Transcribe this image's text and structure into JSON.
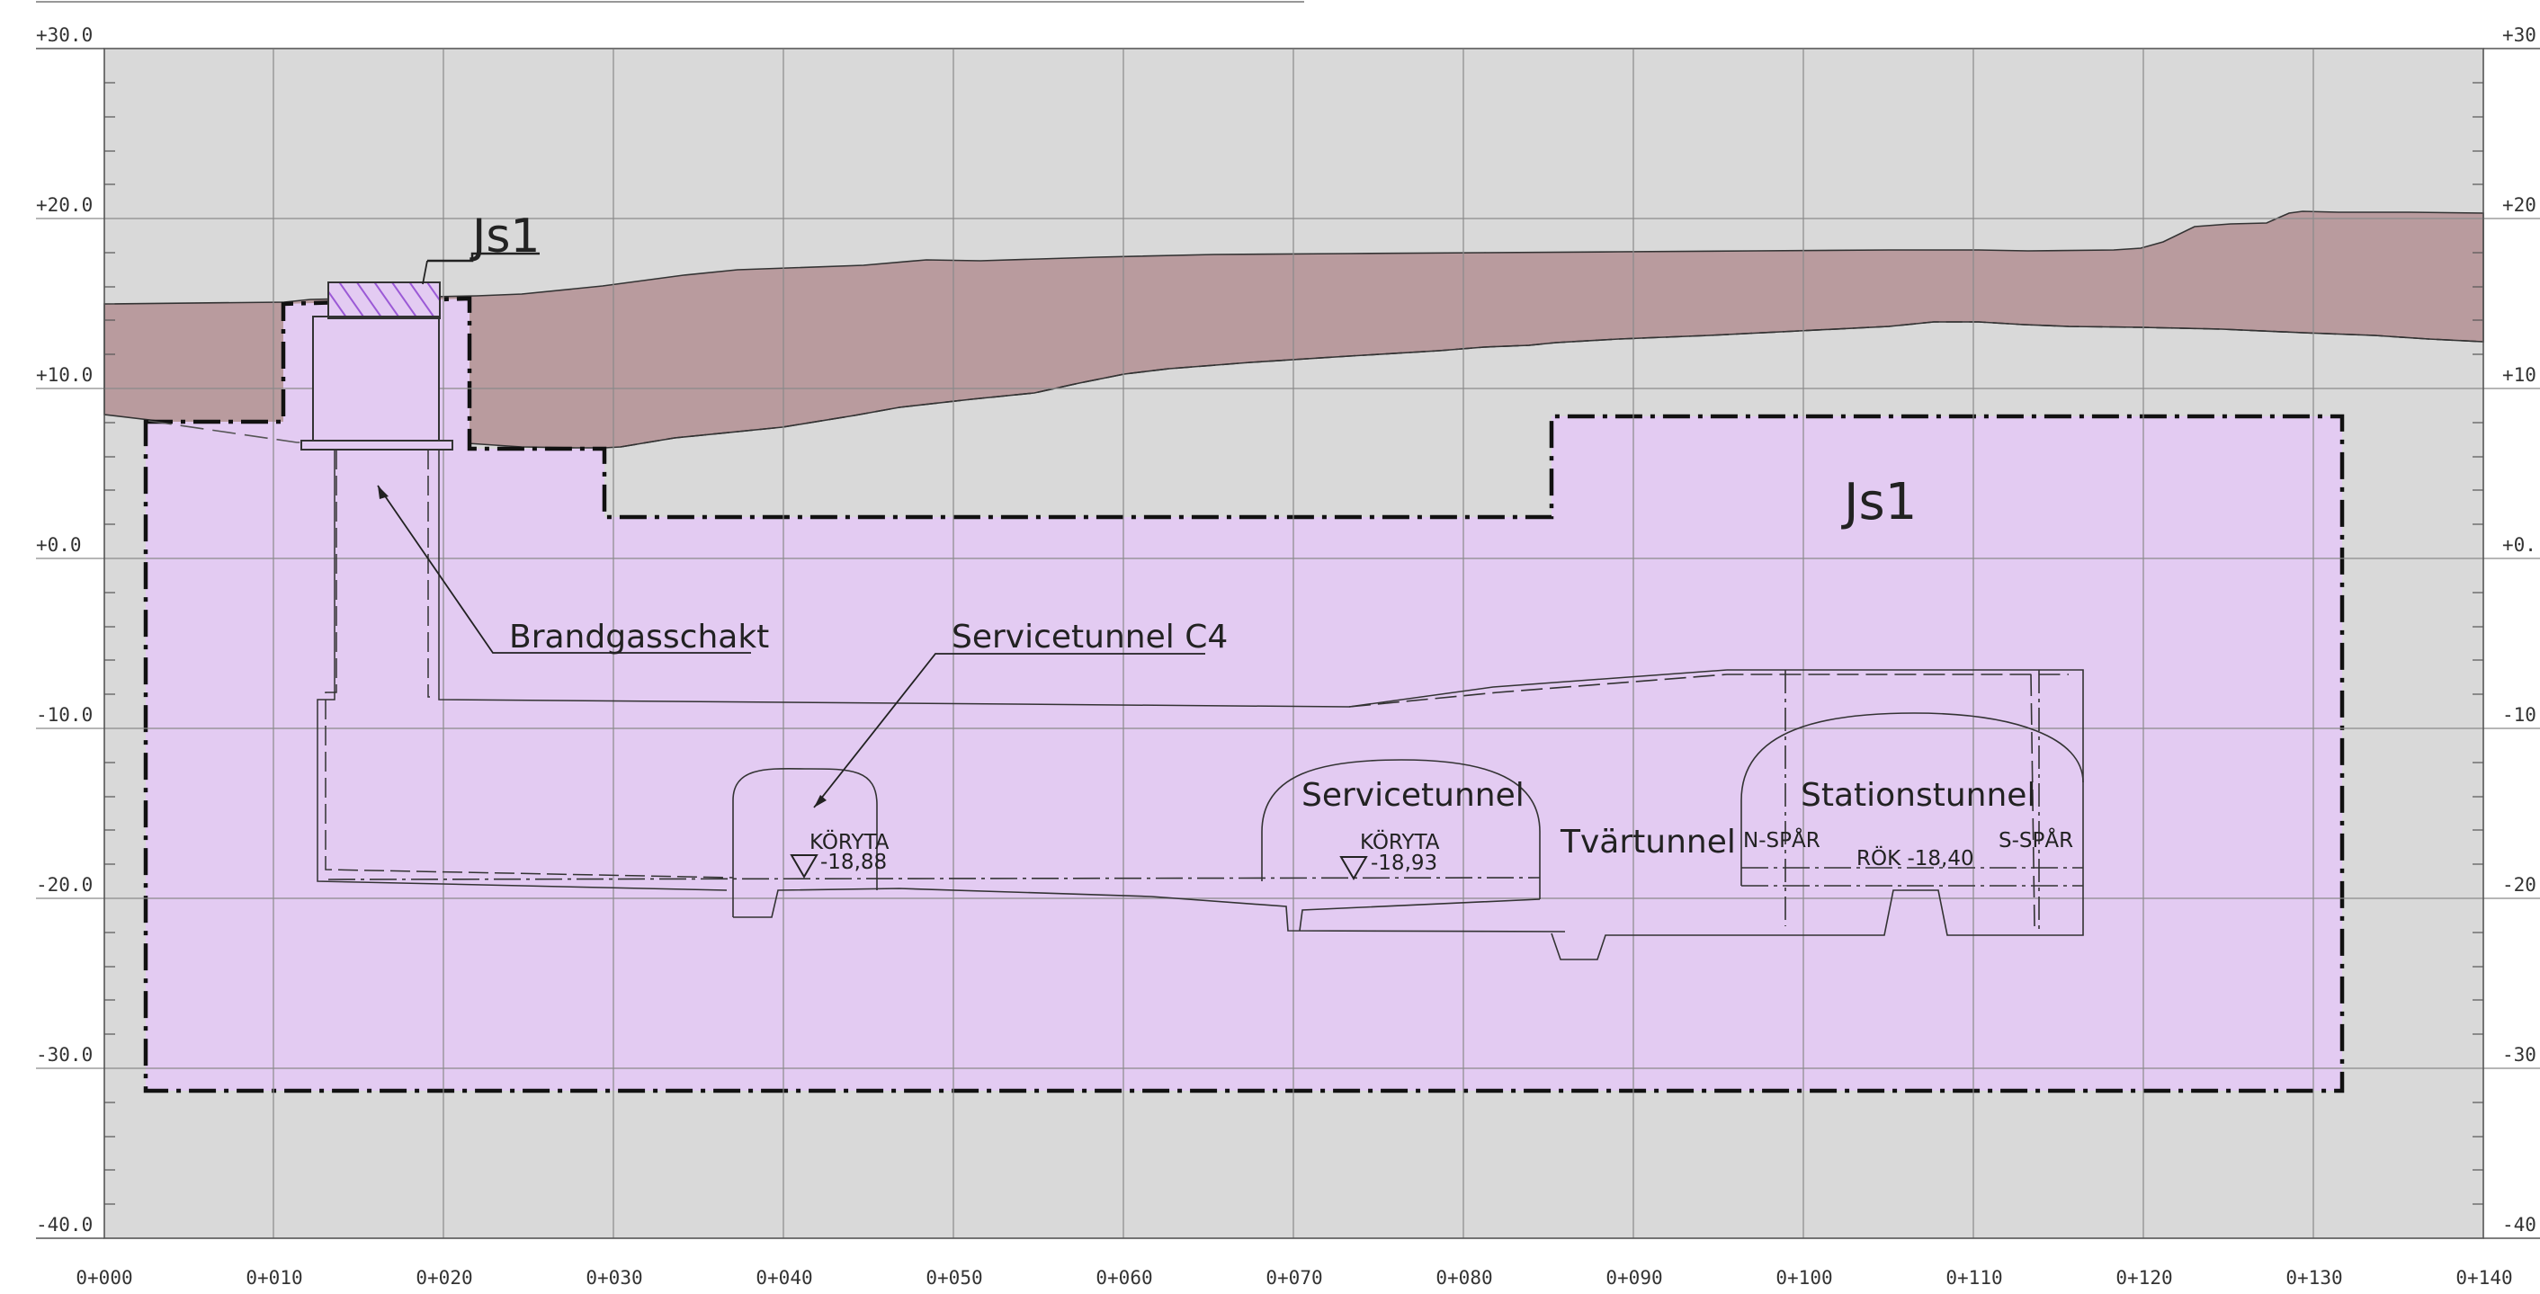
{
  "colors": {
    "background": "#ffffff",
    "grid": "#8a8a8a",
    "frame": "#555555",
    "bedrock": "#d9d9d9",
    "soil": "#b99b9e",
    "zone_js1": "#e3cbf2",
    "outline": "#222222",
    "hatch": "#9b59d6"
  },
  "axes": {
    "elevation_labels": [
      "+30.0",
      "+20.0",
      "+10.0",
      "+0.0",
      "-10.0",
      "-20.0",
      "-30.0",
      "-40.0"
    ],
    "elevation_labels_right": [
      "+30.",
      "+20.",
      "+10.",
      "+0.",
      "-10.",
      "-20.",
      "-30.",
      "-40."
    ],
    "chainage_labels": [
      "0+000",
      "0+010",
      "0+020",
      "0+030",
      "0+040",
      "0+050",
      "0+060",
      "0+070",
      "0+080",
      "0+090",
      "0+100",
      "0+110",
      "0+120",
      "0+130",
      "0+140"
    ]
  },
  "labels": {
    "zone_main": "Js1",
    "zone_shaft": "Js1",
    "brandgasschakt": "Brandgasschakt",
    "servicetunnel_c4": "Servicetunnel C4",
    "servicetunnel": "Servicetunnel",
    "tvartunnel": "Tvärtunnel",
    "stationstunnel": "Stationstunnel",
    "koryta_1_label": "KÖRYTA",
    "koryta_1_level": "-18,88",
    "koryta_2_label": "KÖRYTA",
    "koryta_2_level": "-18,93",
    "n_spar": "N-SPÅR",
    "s_spar": "S-SPÅR",
    "rok": "RÖK -18,40"
  }
}
